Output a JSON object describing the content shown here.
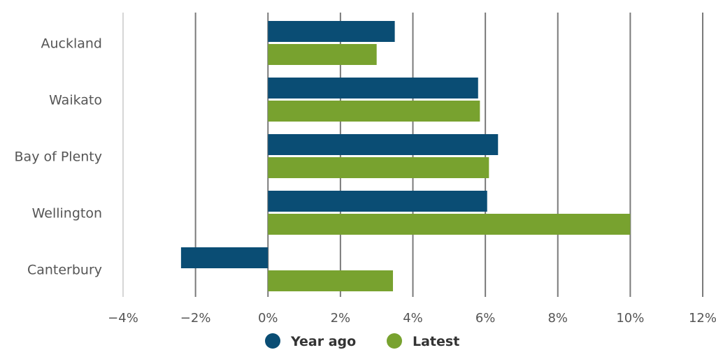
{
  "chart_data": {
    "type": "bar",
    "orientation": "horizontal",
    "categories": [
      "Auckland",
      "Waikato",
      "Bay of Plenty",
      "Wellington",
      "Canterbury"
    ],
    "series": [
      {
        "name": "Year ago",
        "color": "#0a4d74",
        "values": [
          3.5,
          5.8,
          6.35,
          6.05,
          -2.4
        ]
      },
      {
        "name": "Latest",
        "color": "#78a22f",
        "values": [
          3.0,
          5.85,
          6.1,
          10.0,
          3.45
        ]
      }
    ],
    "xlim": [
      -4,
      12
    ],
    "xticks": [
      -4,
      -2,
      0,
      2,
      4,
      6,
      8,
      10,
      12
    ],
    "xtick_labels": [
      "−4%",
      "−2%",
      "0%",
      "2%",
      "4%",
      "6%",
      "8%",
      "10%",
      "12%"
    ],
    "grid": "vertical",
    "legend": "bottom-center"
  }
}
